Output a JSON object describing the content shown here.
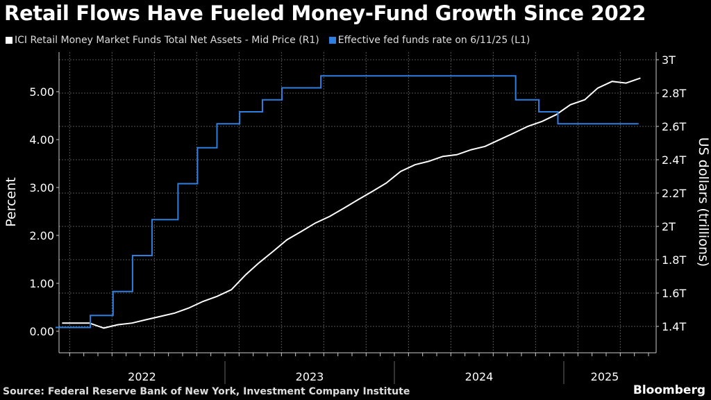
{
  "title": "Retail Flows Have Fueled Money-Fund Growth Since 2022",
  "source": "Source: Federal Reserve Bank of New York, Investment Company Institute",
  "brand": "Bloomberg",
  "colors": {
    "background": "#000000",
    "assets": "#ffffff",
    "fed": "#2f7fe0",
    "grid": "#555555"
  },
  "chart_data": {
    "type": "line",
    "title": "Retail Flows Have Fueled Money-Fund Growth Since 2022",
    "x_categories": [
      "2022",
      "2023",
      "2024",
      "2025"
    ],
    "xlim": [
      "2022-01",
      "2025-07"
    ],
    "grid": true,
    "legend_placement": "top-left",
    "left_axis": {
      "label": "Percent",
      "ticks": [
        "0.00",
        "1.00",
        "2.00",
        "3.00",
        "4.00",
        "5.00"
      ],
      "range": [
        -0.45,
        5.8
      ]
    },
    "right_axis": {
      "label": "US dollars (trillions)",
      "ticks": [
        "1.4T",
        "1.6T",
        "1.8T",
        "2T",
        "2.2T",
        "2.4T",
        "2.6T",
        "2.8T",
        "3T"
      ],
      "range": [
        1.25,
        3.0
      ]
    },
    "series": [
      {
        "name": "ICI Retail Money Market Funds Total Net Assets - Mid Price (R1)",
        "axis": "right",
        "color": "#ffffff",
        "dates": [
          "2022-01",
          "2022-02",
          "2022-03",
          "2022-04",
          "2022-05",
          "2022-06",
          "2022-07",
          "2022-08",
          "2022-09",
          "2022-10",
          "2022-11",
          "2022-12",
          "2023-01",
          "2023-02",
          "2023-03",
          "2023-04",
          "2023-05",
          "2023-06",
          "2023-07",
          "2023-08",
          "2023-09",
          "2023-10",
          "2023-11",
          "2023-12",
          "2024-01",
          "2024-02",
          "2024-03",
          "2024-04",
          "2024-05",
          "2024-06",
          "2024-07",
          "2024-08",
          "2024-09",
          "2024-10",
          "2024-11",
          "2024-12",
          "2025-01",
          "2025-02",
          "2025-03",
          "2025-04",
          "2025-05",
          "2025-06"
        ],
        "values": [
          1.42,
          1.42,
          1.42,
          1.39,
          1.41,
          1.42,
          1.44,
          1.46,
          1.48,
          1.51,
          1.55,
          1.58,
          1.62,
          1.71,
          1.78,
          1.85,
          1.92,
          1.97,
          2.02,
          2.06,
          2.11,
          2.16,
          2.21,
          2.26,
          2.33,
          2.37,
          2.39,
          2.42,
          2.43,
          2.46,
          2.48,
          2.52,
          2.56,
          2.6,
          2.63,
          2.67,
          2.73,
          2.76,
          2.83,
          2.87,
          2.86,
          2.89
        ]
      },
      {
        "name": "Effective fed funds rate  on 6/11/25 (L1)",
        "axis": "left",
        "color": "#2f7fe0",
        "step": true,
        "dates": [
          "2022-01-01",
          "2022-03-17",
          "2022-05-05",
          "2022-06-16",
          "2022-07-28",
          "2022-09-22",
          "2022-11-03",
          "2022-12-15",
          "2023-02-02",
          "2023-03-23",
          "2023-05-04",
          "2023-07-27",
          "2024-09-19",
          "2024-11-08",
          "2024-12-19",
          "2025-06-11"
        ],
        "values": [
          0.08,
          0.33,
          0.83,
          1.58,
          2.33,
          3.08,
          3.83,
          4.33,
          4.58,
          4.83,
          5.08,
          5.33,
          4.83,
          4.58,
          4.33,
          4.33
        ]
      }
    ]
  }
}
